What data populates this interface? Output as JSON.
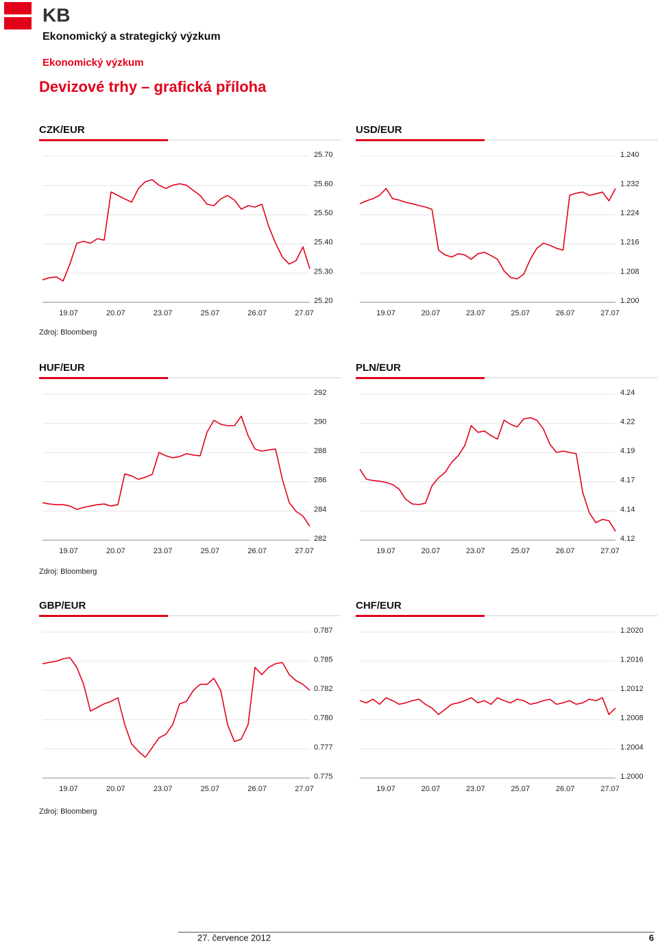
{
  "header": {
    "logo": "KB",
    "department": "Ekonomický a strategický výzkum",
    "section": "Ekonomický výzkum",
    "title": "Devizové trhy – grafická příloha"
  },
  "sources": [
    "Zdroj: Bloomberg",
    "Zdroj: Bloomberg",
    "Zdroj: Bloomberg"
  ],
  "footer": {
    "date": "27. července 2012",
    "page": "6"
  },
  "chart_data": [
    {
      "type": "line",
      "title": "CZK/EUR",
      "color": "#e2001a",
      "grid": true,
      "xtick_labels": [
        "19.07",
        "20.07",
        "23.07",
        "25.07",
        "26.07",
        "27.07"
      ],
      "ylim": [
        25.2,
        25.7
      ],
      "yticks": [
        {
          "value": 25.7,
          "label": "25.70"
        },
        {
          "value": 25.6,
          "label": "25.60"
        },
        {
          "value": 25.5,
          "label": "25.50"
        },
        {
          "value": 25.4,
          "label": "25.40"
        },
        {
          "value": 25.3,
          "label": "25.30"
        },
        {
          "value": 25.2,
          "label": "25.20"
        }
      ],
      "values": [
        25.277,
        25.284,
        25.287,
        25.273,
        25.331,
        25.402,
        25.409,
        25.402,
        25.418,
        25.413,
        25.578,
        25.566,
        25.554,
        25.543,
        25.59,
        25.613,
        25.62,
        25.601,
        25.59,
        25.601,
        25.606,
        25.601,
        25.583,
        25.566,
        25.536,
        25.531,
        25.554,
        25.566,
        25.55,
        25.519,
        25.531,
        25.526,
        25.536,
        25.46,
        25.402,
        25.355,
        25.331,
        25.343,
        25.39,
        25.315
      ]
    },
    {
      "type": "line",
      "title": "USD/EUR",
      "color": "#e2001a",
      "grid": true,
      "xtick_labels": [
        "19.07",
        "20.07",
        "23.07",
        "25.07",
        "26.07",
        "27.07"
      ],
      "ylim": [
        1.2,
        1.24
      ],
      "yticks": [
        {
          "value": 1.24,
          "label": "1.240"
        },
        {
          "value": 1.232,
          "label": "1.232"
        },
        {
          "value": 1.224,
          "label": "1.224"
        },
        {
          "value": 1.216,
          "label": "1.216"
        },
        {
          "value": 1.208,
          "label": "1.208"
        },
        {
          "value": 1.2,
          "label": "1.200"
        }
      ],
      "values": [
        1.227,
        1.2278,
        1.2284,
        1.2293,
        1.2312,
        1.2284,
        1.228,
        1.2274,
        1.227,
        1.2265,
        1.2261,
        1.2255,
        1.2143,
        1.213,
        1.2124,
        1.2133,
        1.213,
        1.2118,
        1.2133,
        1.2137,
        1.2128,
        1.2118,
        1.2086,
        1.2068,
        1.2064,
        1.2077,
        1.2118,
        1.2148,
        1.2162,
        1.2156,
        1.2148,
        1.2143,
        1.2293,
        1.2299,
        1.2302,
        1.2293,
        1.2297,
        1.2302,
        1.2278,
        1.2312
      ]
    },
    {
      "type": "line",
      "title": "HUF/EUR",
      "color": "#e2001a",
      "grid": true,
      "xtick_labels": [
        "19.07",
        "20.07",
        "23.07",
        "25.07",
        "26.07",
        "27.07"
      ],
      "ylim": [
        282,
        292
      ],
      "yticks": [
        292,
        290,
        288,
        286,
        284,
        282
      ],
      "values": [
        284.57,
        284.48,
        284.43,
        284.43,
        284.34,
        284.11,
        284.25,
        284.34,
        284.43,
        284.48,
        284.34,
        284.43,
        286.54,
        286.4,
        286.17,
        286.31,
        286.5,
        288.01,
        287.78,
        287.64,
        287.73,
        287.92,
        287.83,
        287.78,
        289.39,
        290.21,
        289.94,
        289.84,
        289.84,
        290.49,
        289.16,
        288.24,
        288.1,
        288.19,
        288.24,
        286.17,
        284.57,
        283.97,
        283.65,
        282.96
      ]
    },
    {
      "type": "line",
      "title": "PLN/EUR",
      "color": "#e2001a",
      "grid": true,
      "xtick_labels": [
        "19.07",
        "20.07",
        "23.07",
        "25.07",
        "26.07",
        "27.07"
      ],
      "ylim": [
        4.115,
        4.24
      ],
      "yticks": [
        {
          "value": 4.24,
          "label": "4.24"
        },
        {
          "value": 4.215,
          "label": "4.22"
        },
        {
          "value": 4.19,
          "label": "4.19"
        },
        {
          "value": 4.165,
          "label": "4.17"
        },
        {
          "value": 4.14,
          "label": "4.14"
        },
        {
          "value": 4.115,
          "label": "4.12"
        }
      ],
      "values": [
        4.1758,
        4.1672,
        4.1661,
        4.1655,
        4.1644,
        4.1626,
        4.1586,
        4.15,
        4.146,
        4.1455,
        4.1466,
        4.1615,
        4.1684,
        4.173,
        4.1816,
        4.1873,
        4.1959,
        4.2131,
        4.2073,
        4.2085,
        4.2045,
        4.2016,
        4.2177,
        4.2142,
        4.2119,
        4.2188,
        4.2199,
        4.2177,
        4.2102,
        4.197,
        4.1901,
        4.1913,
        4.1901,
        4.189,
        4.1558,
        4.1386,
        4.13,
        4.1328,
        4.1317,
        4.1225
      ]
    },
    {
      "type": "line",
      "title": "GBP/EUR",
      "color": "#e2001a",
      "grid": true,
      "xtick_labels": [
        "19.07",
        "20.07",
        "23.07",
        "25.07",
        "26.07",
        "27.07"
      ],
      "ylim": [
        0.775,
        0.787
      ],
      "yticks": [
        {
          "value": 0.787,
          "label": "0.787"
        },
        {
          "value": 0.7846,
          "label": "0.785"
        },
        {
          "value": 0.7822,
          "label": "0.782"
        },
        {
          "value": 0.7798,
          "label": "0.780"
        },
        {
          "value": 0.7774,
          "label": "0.777"
        },
        {
          "value": 0.775,
          "label": "0.775"
        }
      ],
      "values": [
        0.7844,
        0.7845,
        0.7846,
        0.7848,
        0.7849,
        0.7841,
        0.7827,
        0.7805,
        0.7808,
        0.7811,
        0.7813,
        0.7816,
        0.7794,
        0.7778,
        0.7772,
        0.7767,
        0.7775,
        0.7783,
        0.7786,
        0.7794,
        0.7811,
        0.7813,
        0.7822,
        0.7827,
        0.7827,
        0.7832,
        0.7822,
        0.7794,
        0.778,
        0.7782,
        0.7794,
        0.7841,
        0.7835,
        0.7841,
        0.7844,
        0.7845,
        0.7835,
        0.783,
        0.7827,
        0.7822
      ]
    },
    {
      "type": "line",
      "title": "CHF/EUR",
      "color": "#e2001a",
      "grid": true,
      "xtick_labels": [
        "19.07",
        "20.07",
        "23.07",
        "25.07",
        "26.07",
        "27.07"
      ],
      "ylim": [
        1.2,
        1.202
      ],
      "yticks": [
        {
          "value": 1.202,
          "label": "1.2020"
        },
        {
          "value": 1.2016,
          "label": "1.2016"
        },
        {
          "value": 1.2012,
          "label": "1.2012"
        },
        {
          "value": 1.2008,
          "label": "1.2008"
        },
        {
          "value": 1.2004,
          "label": "1.2004"
        },
        {
          "value": 1.2,
          "label": "1.2000"
        }
      ],
      "values": [
        1.20106,
        1.20103,
        1.20108,
        1.20101,
        1.2011,
        1.20106,
        1.20101,
        1.20103,
        1.20106,
        1.20108,
        1.20101,
        1.20096,
        1.20087,
        1.20094,
        1.20101,
        1.20103,
        1.20106,
        1.2011,
        1.20103,
        1.20106,
        1.20101,
        1.2011,
        1.20106,
        1.20103,
        1.20108,
        1.20106,
        1.20101,
        1.20103,
        1.20106,
        1.20108,
        1.20101,
        1.20103,
        1.20106,
        1.20101,
        1.20103,
        1.20108,
        1.20106,
        1.2011,
        1.20087,
        1.20096
      ]
    }
  ]
}
